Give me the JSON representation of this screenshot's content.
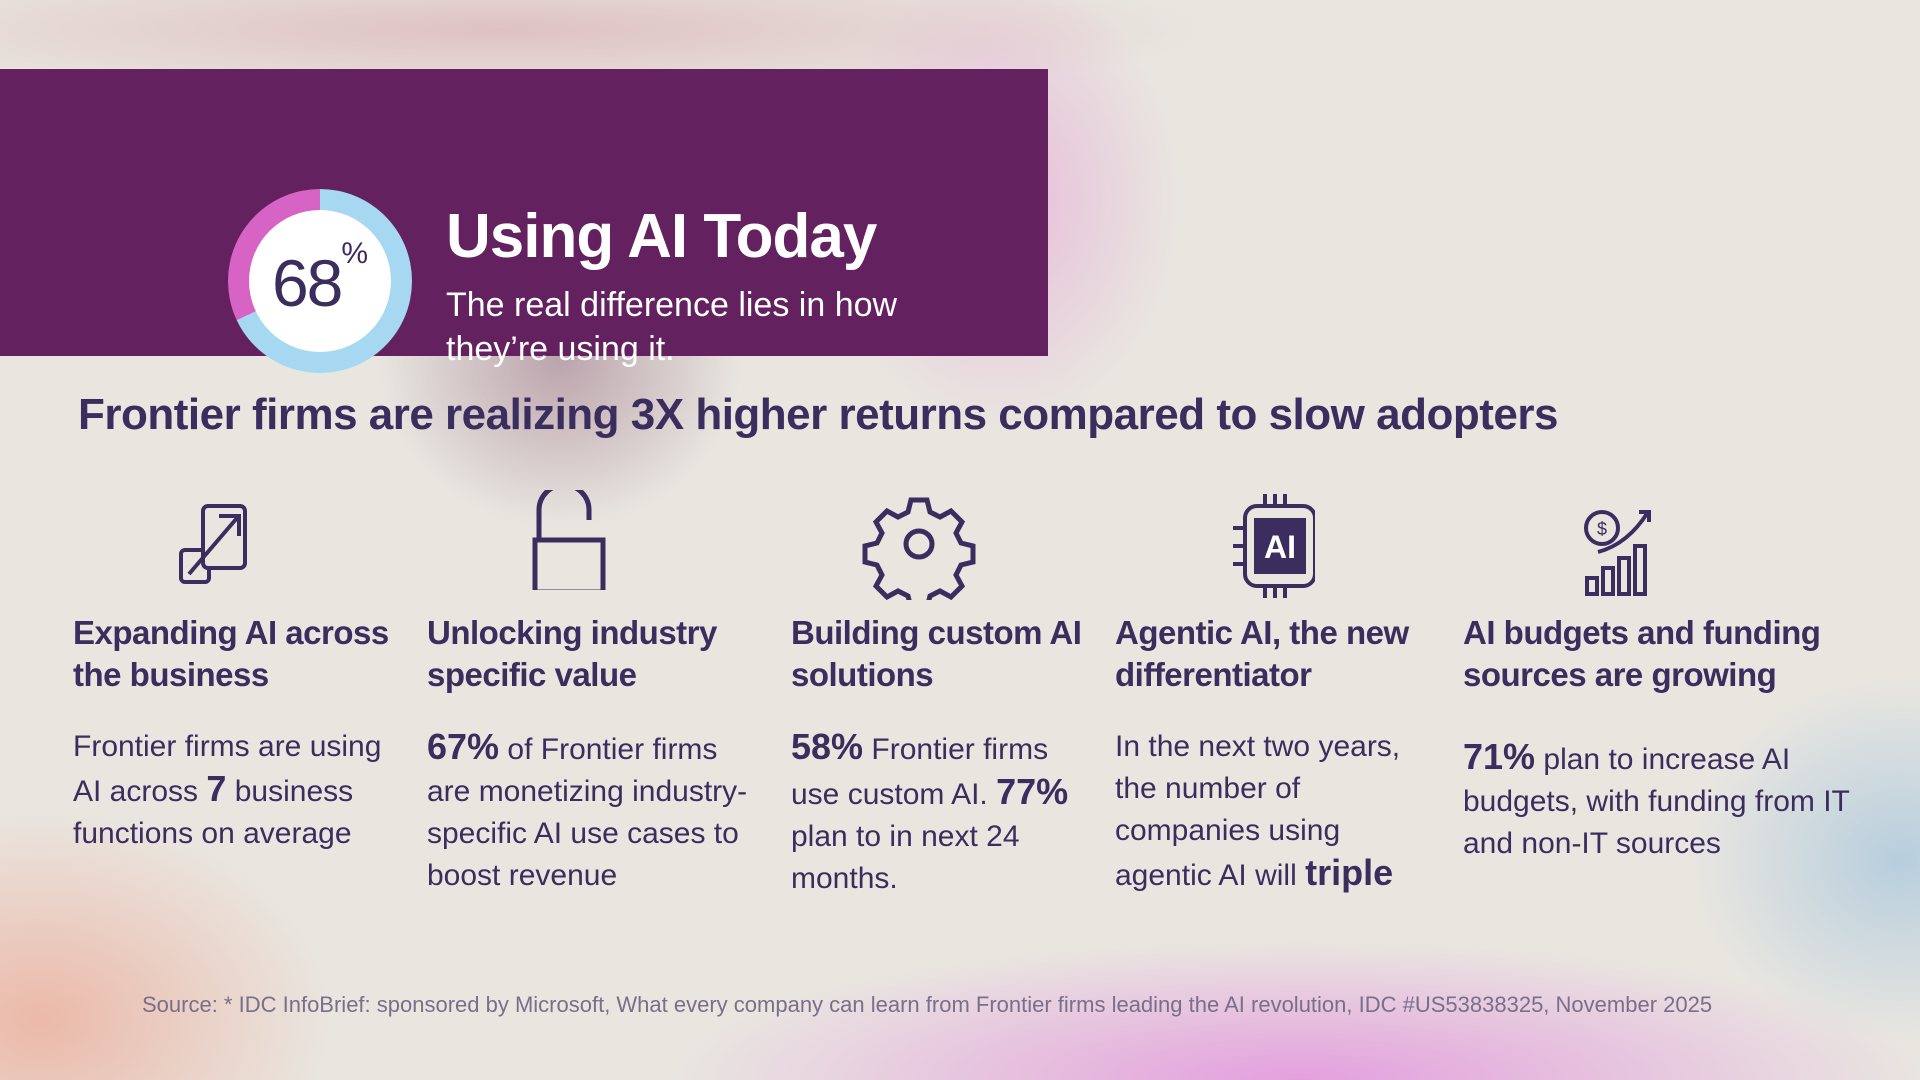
{
  "banner": {
    "percent": "68",
    "percent_sign": "%",
    "percent_value": 68,
    "title": "Using AI Today",
    "subtitle": "The real difference lies in how they’re using it.",
    "color": "#63215f",
    "ring_colors": {
      "filled": "#a6d8f2",
      "remainder": "#d764c4"
    }
  },
  "headline": "Frontier firms are realizing 3X higher returns compared to slow adopters",
  "columns": [
    {
      "icon": "expand-arrow-icon",
      "heading": "Expanding AI across the business",
      "body": [
        {
          "t": "Frontier firms are using AI across "
        },
        {
          "b": "7"
        },
        {
          "t": " business functions on average"
        }
      ]
    },
    {
      "icon": "unlocked-padlock-icon",
      "heading": "Unlocking industry specific value",
      "body": [
        {
          "b": "67%"
        },
        {
          "t": " of Frontier firms are monetizing industry-specific AI use cases to boost revenue"
        }
      ]
    },
    {
      "icon": "gear-icon",
      "heading": "Building custom AI solutions",
      "body": [
        {
          "b": "58%"
        },
        {
          "t": " Frontier firms use custom AI. "
        },
        {
          "b": "77%"
        },
        {
          "t": " plan to in next 24 months."
        }
      ]
    },
    {
      "icon": "ai-chip-icon",
      "chip_label": "AI",
      "heading": "Agentic AI, the new differentiator",
      "body": [
        {
          "t": "In the next two years, the number of companies using agentic AI will "
        },
        {
          "b": "triple"
        }
      ]
    },
    {
      "icon": "growth-chart-dollar-icon",
      "heading": "AI budgets and funding sources are growing",
      "body": [
        {
          "b": "71%"
        },
        {
          "t": " plan to increase AI budgets, with funding from IT and non-IT sources"
        }
      ]
    }
  ],
  "source": "Source: * IDC InfoBrief: sponsored by Microsoft, What every company can learn from Frontier firms leading the AI revolution, IDC #US53838325, November 2025"
}
